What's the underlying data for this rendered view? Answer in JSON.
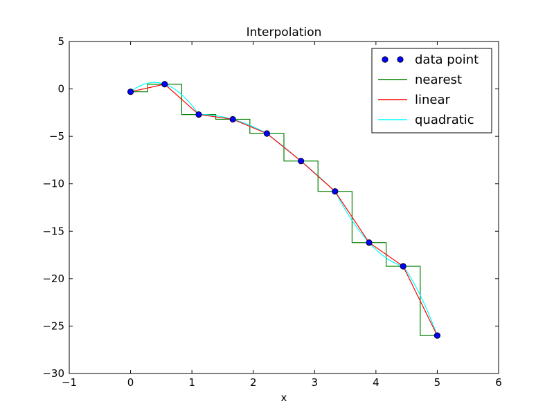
{
  "chart_data": {
    "type": "line",
    "title": "Interpolation",
    "xlabel": "x",
    "ylabel": "",
    "xlim": [
      -1,
      6
    ],
    "ylim": [
      -30,
      5
    ],
    "xticks": [
      -1,
      0,
      1,
      2,
      3,
      4,
      5,
      6
    ],
    "yticks": [
      -30,
      -25,
      -20,
      -15,
      -10,
      -5,
      0,
      5
    ],
    "xtick_labels": [
      "−1",
      "0",
      "1",
      "2",
      "3",
      "4",
      "5",
      "6"
    ],
    "ytick_labels": [
      "−30",
      "−25",
      "−20",
      "−15",
      "−10",
      "−5",
      "0",
      "5"
    ],
    "grid": false,
    "legend_position": "top-right",
    "points": {
      "x": [
        0,
        0.5556,
        1.1111,
        1.6667,
        2.2222,
        2.7778,
        3.3333,
        3.8889,
        4.4444,
        5.0
      ],
      "y": [
        -0.3,
        0.5,
        -2.7,
        -3.2,
        -4.7,
        -7.6,
        -10.8,
        -16.2,
        -18.7,
        -26.0
      ]
    },
    "series": [
      {
        "name": "data point",
        "kind": "markers",
        "color": "#0000ff"
      },
      {
        "name": "nearest",
        "kind": "step",
        "color": "#008000"
      },
      {
        "name": "linear",
        "kind": "line",
        "color": "#ff0000"
      },
      {
        "name": "quadratic",
        "kind": "spline",
        "color": "#00ffff"
      }
    ]
  }
}
